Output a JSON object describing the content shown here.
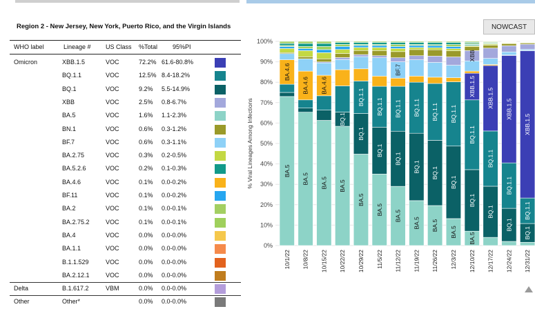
{
  "region_title": "Region 2 - New Jersey, New York, Puerto Rico, and the Virgin Islands",
  "table_headers": {
    "who": "WHO label",
    "lineage": "Lineage #",
    "class": "US Class",
    "total": "%Total",
    "pi": "95%PI"
  },
  "rows": [
    {
      "who": "Omicron",
      "lineage": "XBB.1.5",
      "class": "VOC",
      "total": "72.2%",
      "pi": "61.6-80.8%",
      "color": "#3b3fb5"
    },
    {
      "who": "",
      "lineage": "BQ.1.1",
      "class": "VOC",
      "total": "12.5%",
      "pi": "8.4-18.2%",
      "color": "#16848e"
    },
    {
      "who": "",
      "lineage": "BQ.1",
      "class": "VOC",
      "total": "9.2%",
      "pi": "5.5-14.9%",
      "color": "#0b6166"
    },
    {
      "who": "",
      "lineage": "XBB",
      "class": "VOC",
      "total": "2.5%",
      "pi": "0.8-6.7%",
      "color": "#a3a8dc"
    },
    {
      "who": "",
      "lineage": "BA.5",
      "class": "VOC",
      "total": "1.6%",
      "pi": "1.1-2.3%",
      "color": "#8dd3c7"
    },
    {
      "who": "",
      "lineage": "BN.1",
      "class": "VOC",
      "total": "0.6%",
      "pi": "0.3-1.2%",
      "color": "#9a9a2a"
    },
    {
      "who": "",
      "lineage": "BF.7",
      "class": "VOC",
      "total": "0.6%",
      "pi": "0.3-1.1%",
      "color": "#8ed1f7"
    },
    {
      "who": "",
      "lineage": "BA.2.75",
      "class": "VOC",
      "total": "0.3%",
      "pi": "0.2-0.5%",
      "color": "#c3d843"
    },
    {
      "who": "",
      "lineage": "BA.5.2.6",
      "class": "VOC",
      "total": "0.2%",
      "pi": "0.1-0.3%",
      "color": "#129a8a"
    },
    {
      "who": "",
      "lineage": "BA.4.6",
      "class": "VOC",
      "total": "0.1%",
      "pi": "0.0-0.2%",
      "color": "#f9b21a"
    },
    {
      "who": "",
      "lineage": "BF.11",
      "class": "VOC",
      "total": "0.1%",
      "pi": "0.0-0.2%",
      "color": "#26a6f0"
    },
    {
      "who": "",
      "lineage": "BA.2",
      "class": "VOC",
      "total": "0.1%",
      "pi": "0.0-0.1%",
      "color": "#a3cf62"
    },
    {
      "who": "",
      "lineage": "BA.2.75.2",
      "class": "VOC",
      "total": "0.1%",
      "pi": "0.0-0.1%",
      "color": "#9fd05c"
    },
    {
      "who": "",
      "lineage": "BA.4",
      "class": "VOC",
      "total": "0.0%",
      "pi": "0.0-0.0%",
      "color": "#f5c84c"
    },
    {
      "who": "",
      "lineage": "BA.1.1",
      "class": "VOC",
      "total": "0.0%",
      "pi": "0.0-0.0%",
      "color": "#f58a4b"
    },
    {
      "who": "",
      "lineage": "B.1.1.529",
      "class": "VOC",
      "total": "0.0%",
      "pi": "0.0-0.0%",
      "color": "#e2621e"
    },
    {
      "who": "",
      "lineage": "BA.2.12.1",
      "class": "VOC",
      "total": "0.0%",
      "pi": "0.0-0.0%",
      "color": "#c07d1e"
    },
    {
      "who": "Delta",
      "lineage": "B.1.617.2",
      "class": "VBM",
      "total": "0.0%",
      "pi": "0.0-0.0%",
      "color": "#b49ddb"
    },
    {
      "who": "Other",
      "lineage": "Other*",
      "class": "",
      "total": "0.0%",
      "pi": "0.0-0.0%",
      "color": "#7a7a7a"
    }
  ],
  "nowcast_label": "NOWCAST",
  "chart_data": {
    "type": "bar",
    "stacked": true,
    "title": "",
    "xlabel": "",
    "ylabel": "% Viral Lineages Among Infections",
    "ylim": [
      0,
      100
    ],
    "y_ticks": [
      "0%",
      "10%",
      "20%",
      "30%",
      "40%",
      "50%",
      "60%",
      "70%",
      "80%",
      "90%",
      "100%"
    ],
    "categories": [
      "10/1/22",
      "10/8/22",
      "10/15/22",
      "10/22/22",
      "10/29/22",
      "11/5/22",
      "11/12/22",
      "11/19/22",
      "11/26/22",
      "12/3/22",
      "12/10/22",
      "12/17/22",
      "12/24/22",
      "12/31/22"
    ],
    "series": [
      {
        "name": "BA.5",
        "color": "#8dd3c7",
        "values": [
          73,
          65,
          61,
          59,
          45,
          35,
          29,
          22,
          19,
          13,
          7,
          4,
          2,
          1.6
        ]
      },
      {
        "name": "BQ.1",
        "color": "#0b6166",
        "values": [
          2,
          2,
          5,
          7,
          20,
          23,
          27,
          33,
          31,
          35,
          30,
          25,
          16,
          9.2
        ]
      },
      {
        "name": "BQ.1.1",
        "color": "#16848e",
        "values": [
          4,
          4,
          7,
          13,
          16,
          20,
          22,
          25,
          27,
          31,
          34,
          27,
          22,
          12.5
        ]
      },
      {
        "name": "XBB.1.5",
        "color": "#3b3fb5",
        "values": [
          0,
          0,
          0,
          0,
          0,
          0,
          0,
          0,
          0,
          0,
          13,
          32,
          52,
          72.2
        ]
      },
      {
        "name": "BA.4.6",
        "color": "#f9b21a",
        "values": [
          12,
          14,
          10,
          8,
          6,
          5,
          4,
          3,
          3,
          2,
          1,
          0.5,
          0.2,
          0.1
        ]
      },
      {
        "name": "BF.7",
        "color": "#8ed1f7",
        "values": [
          3,
          6,
          6,
          5,
          6,
          9,
          8,
          8,
          7,
          6,
          5,
          3,
          1.5,
          0.6
        ]
      },
      {
        "name": "XBB",
        "color": "#a3a8dc",
        "values": [
          0,
          0,
          0.5,
          1,
          1,
          1,
          2,
          2,
          3,
          4,
          5,
          5,
          3,
          2.5
        ]
      },
      {
        "name": "BN.1",
        "color": "#9a9a2a",
        "values": [
          0.5,
          1,
          1.5,
          2,
          2,
          2.5,
          3,
          3,
          3,
          3,
          2,
          1.5,
          1,
          0.6
        ]
      },
      {
        "name": "BA.2.75",
        "color": "#c3d843",
        "values": [
          2,
          3,
          3,
          2,
          1.5,
          1.5,
          1.5,
          1,
          1,
          1,
          0.5,
          0.5,
          0.3,
          0.3
        ]
      },
      {
        "name": "BF.11",
        "color": "#26a6f0",
        "values": [
          1,
          1,
          1.5,
          1.5,
          1,
          1,
          1,
          1,
          1,
          1,
          0.5,
          0.3,
          0.2,
          0.1
        ]
      },
      {
        "name": "BA.2.75.2",
        "color": "#9fd05c",
        "values": [
          0.5,
          1,
          1.5,
          1,
          0.5,
          0.5,
          1,
          0.5,
          0.5,
          1,
          0.5,
          0.4,
          0.2,
          0.1
        ]
      },
      {
        "name": "BA.5.2.6",
        "color": "#129a8a",
        "values": [
          1,
          1.5,
          1.5,
          1,
          1,
          1,
          1,
          1,
          1,
          1,
          0.5,
          0.3,
          0.2,
          0.2
        ]
      },
      {
        "name": "BA.2",
        "color": "#a3cf62",
        "values": [
          1,
          1,
          1,
          0.5,
          0.5,
          0.5,
          0.5,
          0.5,
          0.5,
          0.5,
          0.5,
          0.3,
          0.2,
          0.1
        ]
      }
    ],
    "bar_labels": [
      {
        "col": 0,
        "series": "BA.5",
        "text": "BA.5"
      },
      {
        "col": 0,
        "series": "BA.4.6",
        "text": "BA.4.6"
      },
      {
        "col": 1,
        "series": "BA.5",
        "text": "BA.5"
      },
      {
        "col": 1,
        "series": "BA.4.6",
        "text": "BA.4.6"
      },
      {
        "col": 2,
        "series": "BA.5",
        "text": "BA.5"
      },
      {
        "col": 2,
        "series": "BA.4.6",
        "text": "BA.4.6"
      },
      {
        "col": 3,
        "series": "BA.5",
        "text": "BA.5"
      },
      {
        "col": 3,
        "series": "BQ.1",
        "text": "BQ.1"
      },
      {
        "col": 4,
        "series": "BA.5",
        "text": "BA.5"
      },
      {
        "col": 4,
        "series": "BQ.1",
        "text": "BQ.1"
      },
      {
        "col": 4,
        "series": "BQ.1.1",
        "text": "BQ.1.1"
      },
      {
        "col": 5,
        "series": "BA.5",
        "text": "BA.5"
      },
      {
        "col": 5,
        "series": "BQ.1",
        "text": "BQ.1"
      },
      {
        "col": 5,
        "series": "BQ.1.1",
        "text": "BQ.1.1"
      },
      {
        "col": 6,
        "series": "BA.5",
        "text": "BA.5"
      },
      {
        "col": 6,
        "series": "BQ.1",
        "text": "BQ.1"
      },
      {
        "col": 6,
        "series": "BQ.1.1",
        "text": "BQ.1.1"
      },
      {
        "col": 6,
        "series": "BF.7",
        "text": "BF.7"
      },
      {
        "col": 7,
        "series": "BA.5",
        "text": "BA.5"
      },
      {
        "col": 7,
        "series": "BQ.1",
        "text": "BQ.1"
      },
      {
        "col": 7,
        "series": "BQ.1.1",
        "text": "BQ.1.1"
      },
      {
        "col": 8,
        "series": "BA.5",
        "text": "BA.5"
      },
      {
        "col": 8,
        "series": "BQ.1",
        "text": "BQ.1"
      },
      {
        "col": 8,
        "series": "BQ.1.1",
        "text": "BQ.1.1"
      },
      {
        "col": 9,
        "series": "BA.5",
        "text": "BA.5"
      },
      {
        "col": 9,
        "series": "BQ.1",
        "text": "BQ.1"
      },
      {
        "col": 9,
        "series": "BQ.1.1",
        "text": "BQ.1.1"
      },
      {
        "col": 10,
        "series": "BA.5",
        "text": "BA.5"
      },
      {
        "col": 10,
        "series": "BQ.1",
        "text": "BQ.1"
      },
      {
        "col": 10,
        "series": "BQ.1.1",
        "text": "BQ.1.1"
      },
      {
        "col": 10,
        "series": "XBB.1.5",
        "text": "XBB.1.5"
      },
      {
        "col": 10,
        "series": "XBB",
        "text": "XBB"
      },
      {
        "col": 11,
        "series": "BQ.1",
        "text": "BQ.1"
      },
      {
        "col": 11,
        "series": "BQ.1.1",
        "text": "BQ.1.1"
      },
      {
        "col": 11,
        "series": "XBB.1.5",
        "text": "XBB.1.5"
      },
      {
        "col": 12,
        "series": "BQ.1",
        "text": "BQ.1"
      },
      {
        "col": 12,
        "series": "BQ.1.1",
        "text": "BQ.1.1"
      },
      {
        "col": 12,
        "series": "XBB.1.5",
        "text": "XBB.1.5"
      },
      {
        "col": 13,
        "series": "BQ.1",
        "text": "BQ.1"
      },
      {
        "col": 13,
        "series": "BQ.1.1",
        "text": "BQ.1.1"
      },
      {
        "col": 13,
        "series": "XBB.1.5",
        "text": "XBB.1.5"
      }
    ]
  }
}
